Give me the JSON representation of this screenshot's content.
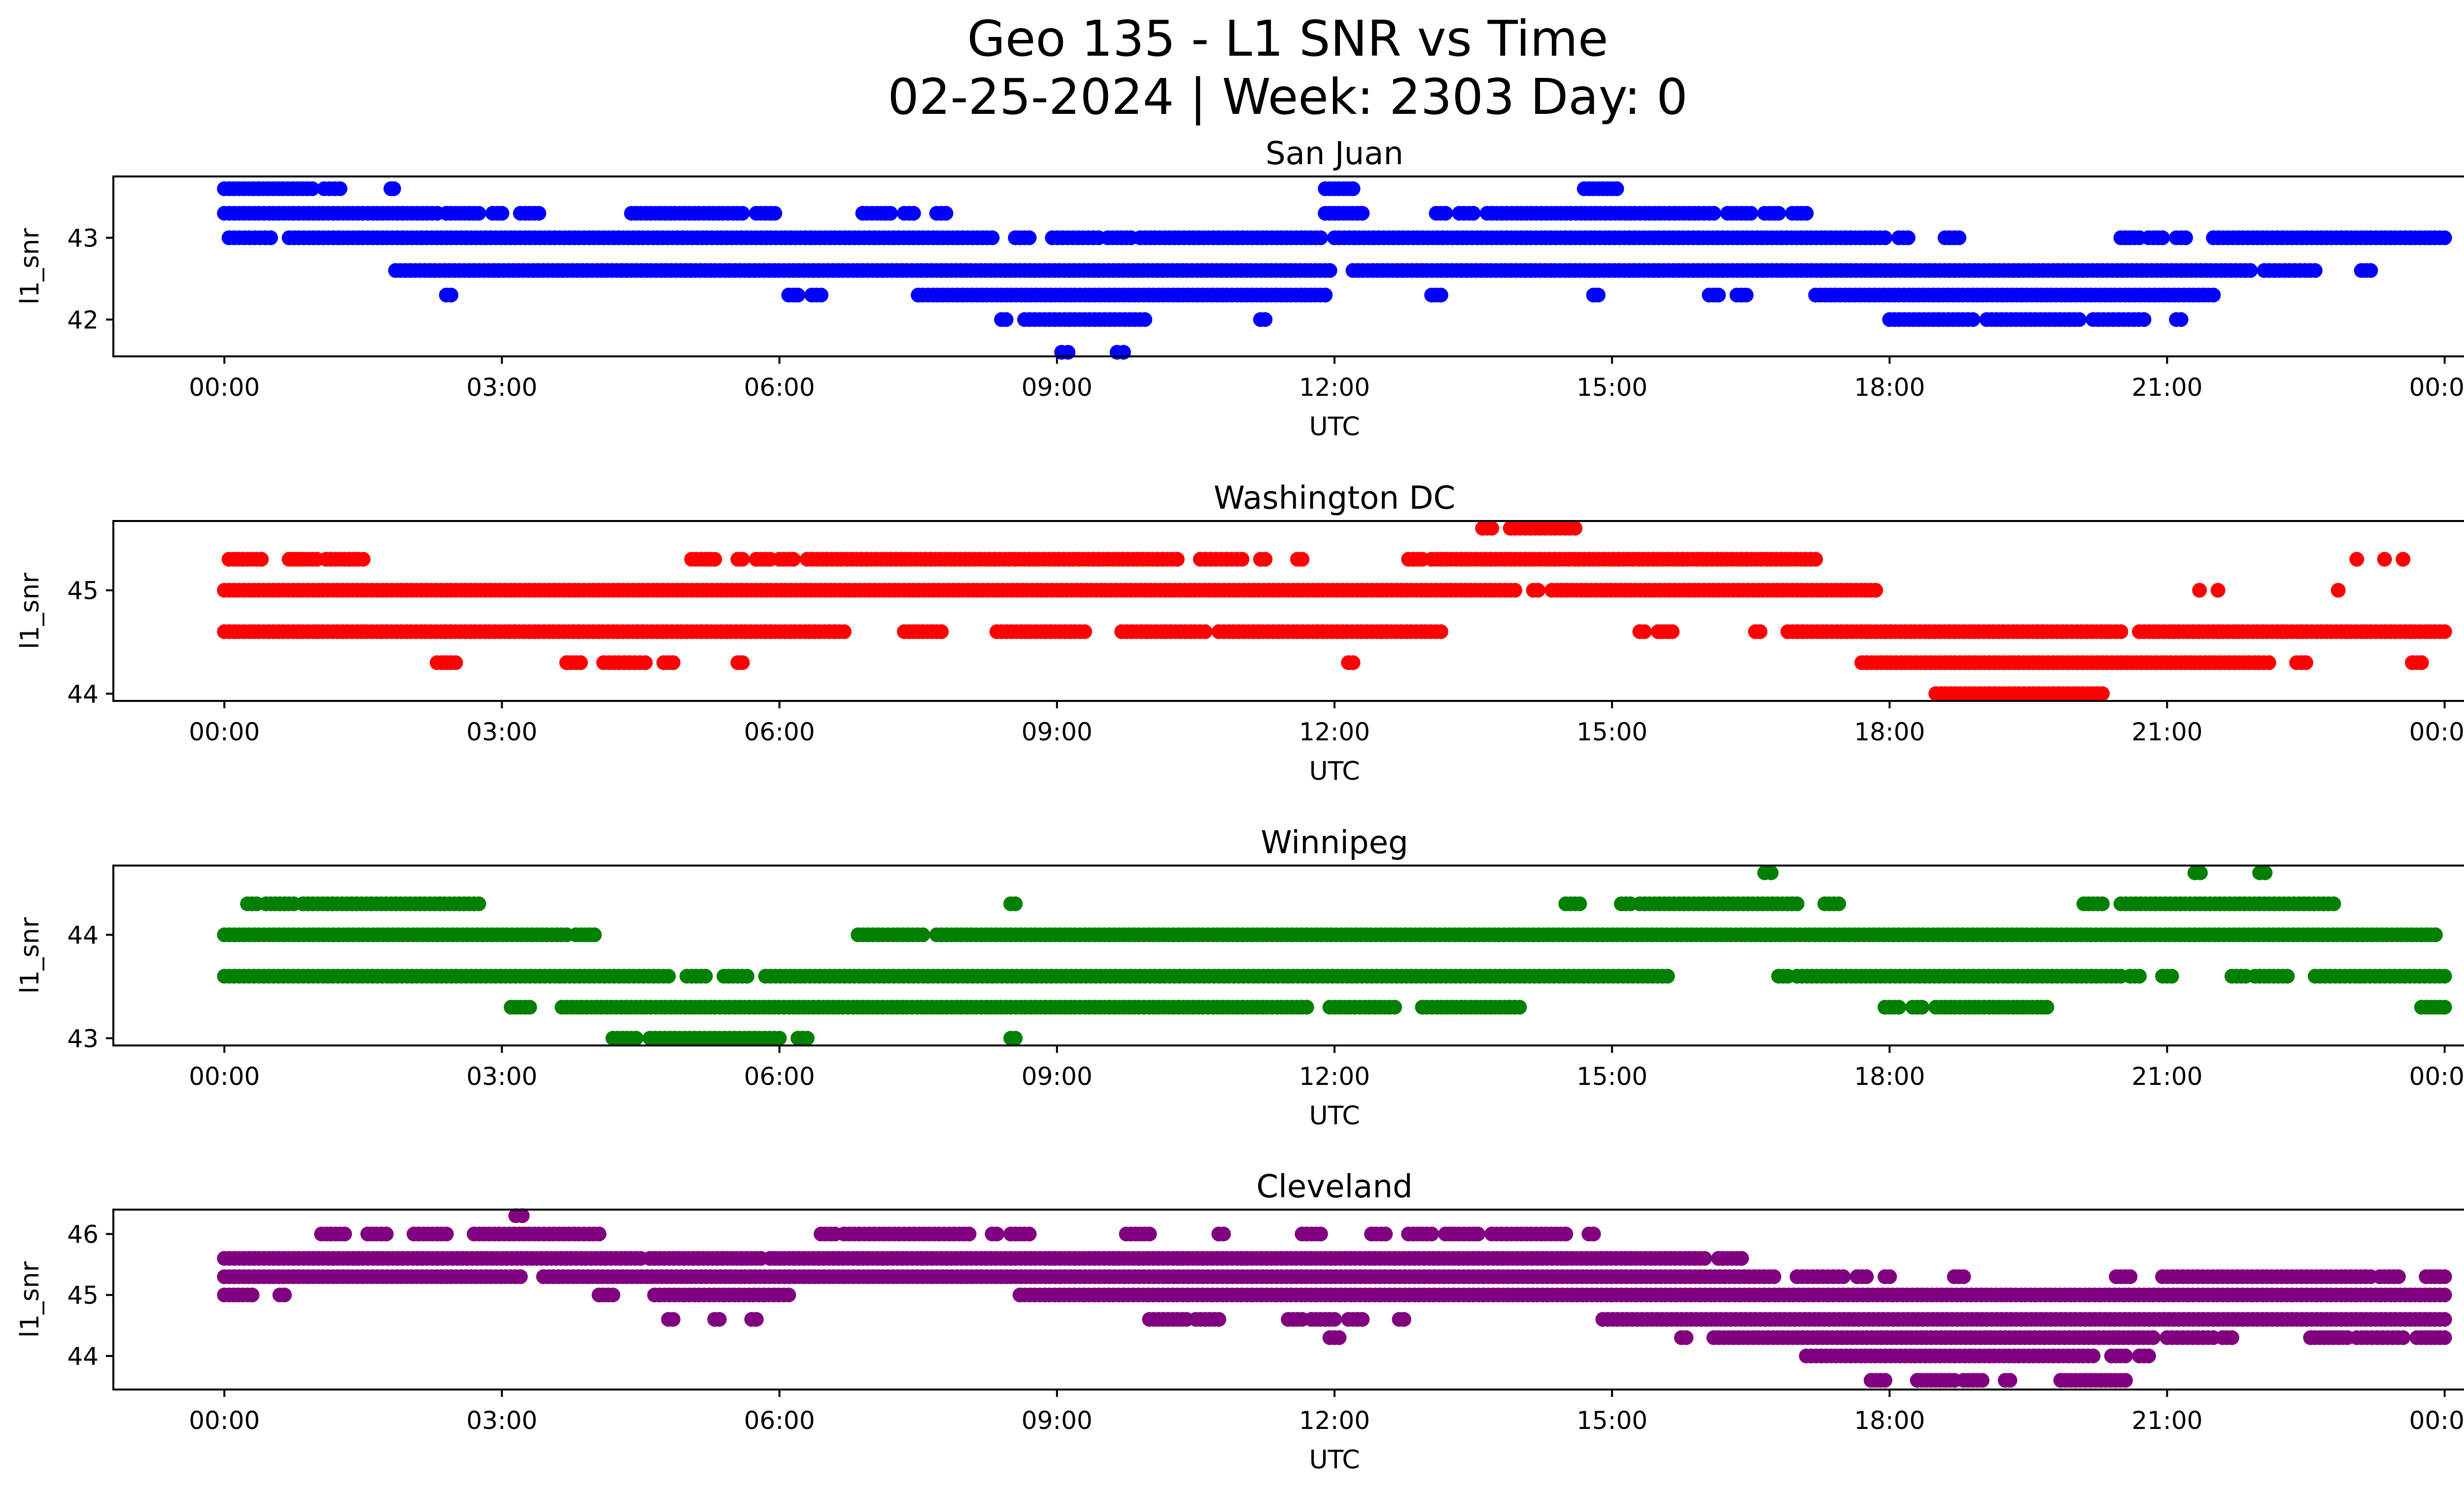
{
  "figure": {
    "title_line1": "Geo 135 - L1 SNR vs Time",
    "title_line2": "02-25-2024 | Week: 2303 Day: 0"
  },
  "chart_data": [
    {
      "type": "scatter",
      "title": "San Juan",
      "xlabel": "UTC",
      "ylabel": "l1_snr",
      "color": "#0000ff",
      "x_ticks": [
        "00:00",
        "03:00",
        "06:00",
        "09:00",
        "12:00",
        "15:00",
        "18:00",
        "21:00",
        "00:00"
      ],
      "y_ticks": [
        42,
        43
      ],
      "xlim_hours": [
        -1.2,
        25.2
      ],
      "ylim": [
        41.55,
        43.75
      ],
      "levels": [
        {
          "y": 43.6,
          "segments": [
            [
              0.0,
              0.95
            ],
            [
              1.08,
              1.25
            ],
            [
              1.8,
              1.83
            ],
            [
              11.9,
              12.2
            ],
            [
              14.7,
              14.9
            ],
            [
              14.95,
              15.05
            ]
          ]
        },
        {
          "y": 43.3,
          "segments": [
            [
              0.0,
              2.3
            ],
            [
              2.4,
              2.75
            ],
            [
              2.9,
              3.0
            ],
            [
              3.2,
              3.4
            ],
            [
              4.4,
              5.6
            ],
            [
              5.75,
              5.95
            ],
            [
              6.9,
              7.2
            ],
            [
              7.35,
              7.45
            ],
            [
              7.7,
              7.8
            ],
            [
              11.9,
              12.3
            ],
            [
              13.1,
              13.2
            ],
            [
              13.35,
              13.5
            ],
            [
              13.65,
              16.1
            ],
            [
              16.25,
              16.5
            ],
            [
              16.65,
              16.8
            ],
            [
              16.95,
              17.1
            ]
          ]
        },
        {
          "y": 43.0,
          "segments": [
            [
              0.05,
              0.5
            ],
            [
              0.7,
              8.3
            ],
            [
              8.55,
              8.7
            ],
            [
              8.95,
              9.45
            ],
            [
              9.55,
              9.8
            ],
            [
              9.9,
              11.85
            ],
            [
              12.0,
              17.95
            ],
            [
              18.1,
              18.2
            ],
            [
              18.6,
              18.75
            ],
            [
              20.5,
              20.7
            ],
            [
              20.8,
              20.95
            ],
            [
              21.1,
              21.2
            ],
            [
              21.5,
              24.0
            ]
          ]
        },
        {
          "y": 42.6,
          "segments": [
            [
              1.85,
              11.95
            ],
            [
              12.2,
              21.9
            ],
            [
              22.05,
              22.6
            ],
            [
              23.1,
              23.2
            ]
          ]
        },
        {
          "y": 42.3,
          "segments": [
            [
              2.4,
              2.45
            ],
            [
              6.1,
              6.2
            ],
            [
              6.35,
              6.45
            ],
            [
              7.5,
              11.9
            ],
            [
              13.05,
              13.15
            ],
            [
              14.8,
              14.85
            ],
            [
              16.05,
              16.15
            ],
            [
              16.35,
              16.45
            ],
            [
              17.2,
              21.5
            ]
          ]
        },
        {
          "y": 42.0,
          "segments": [
            [
              8.4,
              8.45
            ],
            [
              8.65,
              9.95
            ],
            [
              11.2,
              11.25
            ],
            [
              18.0,
              18.9
            ],
            [
              19.05,
              20.05
            ],
            [
              20.2,
              20.75
            ],
            [
              21.1,
              21.15
            ]
          ]
        },
        {
          "y": 41.6,
          "segments": [
            [
              9.05,
              9.12
            ],
            [
              9.65,
              9.72
            ]
          ]
        }
      ]
    },
    {
      "type": "scatter",
      "title": "Washington DC",
      "xlabel": "UTC",
      "ylabel": "l1_snr",
      "color": "#ff0000",
      "x_ticks": [
        "00:00",
        "03:00",
        "06:00",
        "09:00",
        "12:00",
        "15:00",
        "18:00",
        "21:00",
        "00:00"
      ],
      "y_ticks": [
        44,
        45
      ],
      "xlim_hours": [
        -1.2,
        25.2
      ],
      "ylim": [
        43.93,
        45.67
      ],
      "levels": [
        {
          "y": 45.6,
          "segments": [
            [
              13.6,
              13.7
            ],
            [
              13.9,
              14.6
            ]
          ]
        },
        {
          "y": 45.3,
          "segments": [
            [
              0.05,
              0.25
            ],
            [
              0.3,
              0.4
            ],
            [
              0.7,
              1.0
            ],
            [
              1.1,
              1.5
            ],
            [
              5.05,
              5.3
            ],
            [
              5.55,
              5.6
            ],
            [
              5.75,
              5.9
            ],
            [
              6.0,
              6.15
            ],
            [
              6.3,
              10.3
            ],
            [
              10.55,
              11.0
            ],
            [
              11.2,
              11.25
            ],
            [
              11.6,
              11.65
            ],
            [
              12.8,
              12.95
            ],
            [
              13.05,
              17.2
            ]
          ]
        },
        {
          "y": 45.0,
          "segments": [
            [
              0.0,
              13.95
            ],
            [
              14.15,
              14.2
            ],
            [
              14.35,
              17.85
            ]
          ]
        },
        {
          "y": 44.6,
          "segments": [
            [
              0.0,
              6.7
            ],
            [
              7.35,
              7.75
            ],
            [
              8.35,
              9.3
            ],
            [
              9.7,
              10.6
            ],
            [
              10.75,
              13.15
            ],
            [
              15.3,
              15.35
            ],
            [
              15.5,
              15.65
            ],
            [
              16.55,
              16.6
            ],
            [
              16.9,
              20.5
            ],
            [
              20.7,
              24.0
            ]
          ]
        },
        {
          "y": 44.3,
          "segments": [
            [
              2.3,
              2.5
            ],
            [
              3.7,
              3.85
            ],
            [
              4.1,
              4.55
            ],
            [
              4.75,
              4.85
            ],
            [
              5.55,
              5.6
            ],
            [
              12.15,
              12.2
            ],
            [
              17.7,
              22.1
            ],
            [
              22.4,
              22.5
            ],
            [
              23.65,
              23.75
            ]
          ]
        },
        {
          "y": 44.0,
          "segments": [
            [
              18.5,
              20.3
            ]
          ]
        }
      ],
      "extra_points": [
        {
          "x": 21.35,
          "y": 45.0
        },
        {
          "x": 21.55,
          "y": 45.0
        },
        {
          "x": 22.85,
          "y": 45.0
        },
        {
          "x": 23.05,
          "y": 45.3
        },
        {
          "x": 23.35,
          "y": 45.3
        },
        {
          "x": 23.55,
          "y": 45.3
        }
      ]
    },
    {
      "type": "scatter",
      "title": "Winnipeg",
      "xlabel": "UTC",
      "ylabel": "l1_snr",
      "color": "#008000",
      "x_ticks": [
        "00:00",
        "03:00",
        "06:00",
        "09:00",
        "12:00",
        "15:00",
        "18:00",
        "21:00",
        "00:00"
      ],
      "y_ticks": [
        43,
        44
      ],
      "xlim_hours": [
        -1.2,
        25.2
      ],
      "ylim": [
        42.93,
        44.67
      ],
      "levels": [
        {
          "y": 44.6,
          "segments": [
            [
              16.65,
              16.72
            ],
            [
              21.3,
              21.36
            ],
            [
              22.0,
              22.06
            ]
          ]
        },
        {
          "y": 44.3,
          "segments": [
            [
              0.25,
              0.35
            ],
            [
              0.45,
              0.75
            ],
            [
              0.85,
              2.75
            ],
            [
              8.5,
              8.55
            ],
            [
              14.5,
              14.65
            ],
            [
              15.1,
              15.2
            ],
            [
              15.3,
              17.0
            ],
            [
              17.3,
              17.45
            ],
            [
              20.1,
              20.3
            ],
            [
              20.5,
              22.8
            ]
          ]
        },
        {
          "y": 44.0,
          "segments": [
            [
              0.0,
              3.7
            ],
            [
              3.8,
              4.0
            ],
            [
              6.85,
              7.55
            ],
            [
              7.7,
              23.75
            ],
            [
              23.8,
              23.9
            ]
          ]
        },
        {
          "y": 43.6,
          "segments": [
            [
              0.0,
              4.8
            ],
            [
              5.0,
              5.2
            ],
            [
              5.4,
              5.65
            ],
            [
              5.85,
              15.6
            ],
            [
              16.8,
              16.9
            ],
            [
              17.0,
              20.5
            ],
            [
              20.6,
              20.7
            ],
            [
              20.95,
              21.05
            ],
            [
              21.7,
              21.85
            ],
            [
              21.95,
              22.3
            ],
            [
              22.6,
              24.0
            ]
          ]
        },
        {
          "y": 43.3,
          "segments": [
            [
              3.1,
              3.3
            ],
            [
              3.65,
              11.7
            ],
            [
              11.95,
              12.65
            ],
            [
              12.95,
              14.0
            ],
            [
              17.95,
              18.1
            ],
            [
              18.25,
              18.35
            ],
            [
              18.5,
              19.7
            ],
            [
              23.75,
              24.0
            ]
          ]
        },
        {
          "y": 43.0,
          "segments": [
            [
              4.2,
              4.45
            ],
            [
              4.6,
              6.0
            ],
            [
              6.2,
              6.3
            ],
            [
              8.5,
              8.55
            ]
          ]
        }
      ]
    },
    {
      "type": "scatter",
      "title": "Cleveland",
      "xlabel": "UTC",
      "ylabel": "l1_snr",
      "color": "#800080",
      "x_ticks": [
        "00:00",
        "03:00",
        "06:00",
        "09:00",
        "12:00",
        "15:00",
        "18:00",
        "21:00",
        "00:00"
      ],
      "y_ticks": [
        44,
        45,
        46
      ],
      "xlim_hours": [
        -1.2,
        25.2
      ],
      "ylim": [
        43.45,
        46.4
      ],
      "levels": [
        {
          "y": 46.3,
          "segments": [
            [
              3.15,
              3.22
            ]
          ]
        },
        {
          "y": 46.0,
          "segments": [
            [
              1.05,
              1.3
            ],
            [
              1.55,
              1.75
            ],
            [
              2.05,
              2.4
            ],
            [
              2.7,
              4.05
            ],
            [
              6.45,
              6.6
            ],
            [
              6.7,
              8.05
            ],
            [
              8.3,
              8.35
            ],
            [
              8.5,
              8.7
            ],
            [
              9.75,
              10.0
            ],
            [
              10.75,
              10.8
            ],
            [
              11.65,
              11.85
            ],
            [
              12.4,
              12.55
            ],
            [
              12.8,
              13.05
            ],
            [
              13.2,
              13.55
            ],
            [
              13.7,
              14.5
            ],
            [
              14.75,
              14.8
            ]
          ]
        },
        {
          "y": 45.6,
          "segments": [
            [
              0.0,
              4.5
            ],
            [
              4.6,
              5.8
            ],
            [
              5.9,
              6.0
            ],
            [
              6.05,
              16.0
            ],
            [
              16.15,
              16.4
            ]
          ]
        },
        {
          "y": 45.3,
          "segments": [
            [
              0.0,
              3.2
            ],
            [
              3.45,
              16.75
            ],
            [
              17.0,
              17.5
            ],
            [
              17.65,
              17.75
            ],
            [
              17.95,
              18.0
            ],
            [
              18.7,
              18.8
            ],
            [
              20.45,
              20.6
            ],
            [
              20.95,
              21.55
            ],
            [
              21.6,
              23.2
            ],
            [
              23.3,
              23.5
            ],
            [
              23.8,
              24.0
            ]
          ]
        },
        {
          "y": 45.0,
          "segments": [
            [
              0.0,
              0.3
            ],
            [
              0.6,
              0.65
            ],
            [
              4.05,
              4.2
            ],
            [
              4.65,
              6.1
            ],
            [
              8.6,
              24.0
            ]
          ]
        },
        {
          "y": 44.6,
          "segments": [
            [
              4.8,
              4.85
            ],
            [
              5.3,
              5.35
            ],
            [
              5.7,
              5.75
            ],
            [
              10.0,
              10.4
            ],
            [
              10.5,
              10.75
            ],
            [
              11.5,
              11.65
            ],
            [
              11.75,
              12.0
            ],
            [
              12.15,
              12.3
            ],
            [
              12.7,
              12.75
            ],
            [
              14.9,
              24.0
            ]
          ]
        },
        {
          "y": 44.3,
          "segments": [
            [
              11.95,
              12.05
            ],
            [
              15.75,
              15.8
            ],
            [
              16.1,
              20.85
            ],
            [
              21.0,
              21.5
            ],
            [
              21.6,
              21.7
            ],
            [
              22.55,
              22.95
            ],
            [
              23.05,
              23.55
            ],
            [
              23.7,
              24.0
            ]
          ]
        },
        {
          "y": 44.0,
          "segments": [
            [
              17.1,
              20.2
            ],
            [
              20.4,
              20.55
            ],
            [
              20.7,
              20.8
            ]
          ]
        },
        {
          "y": 43.6,
          "segments": [
            [
              17.8,
              17.95
            ],
            [
              18.3,
              18.7
            ],
            [
              18.8,
              19.0
            ],
            [
              19.25,
              19.3
            ],
            [
              19.85,
              20.55
            ]
          ]
        }
      ]
    }
  ]
}
